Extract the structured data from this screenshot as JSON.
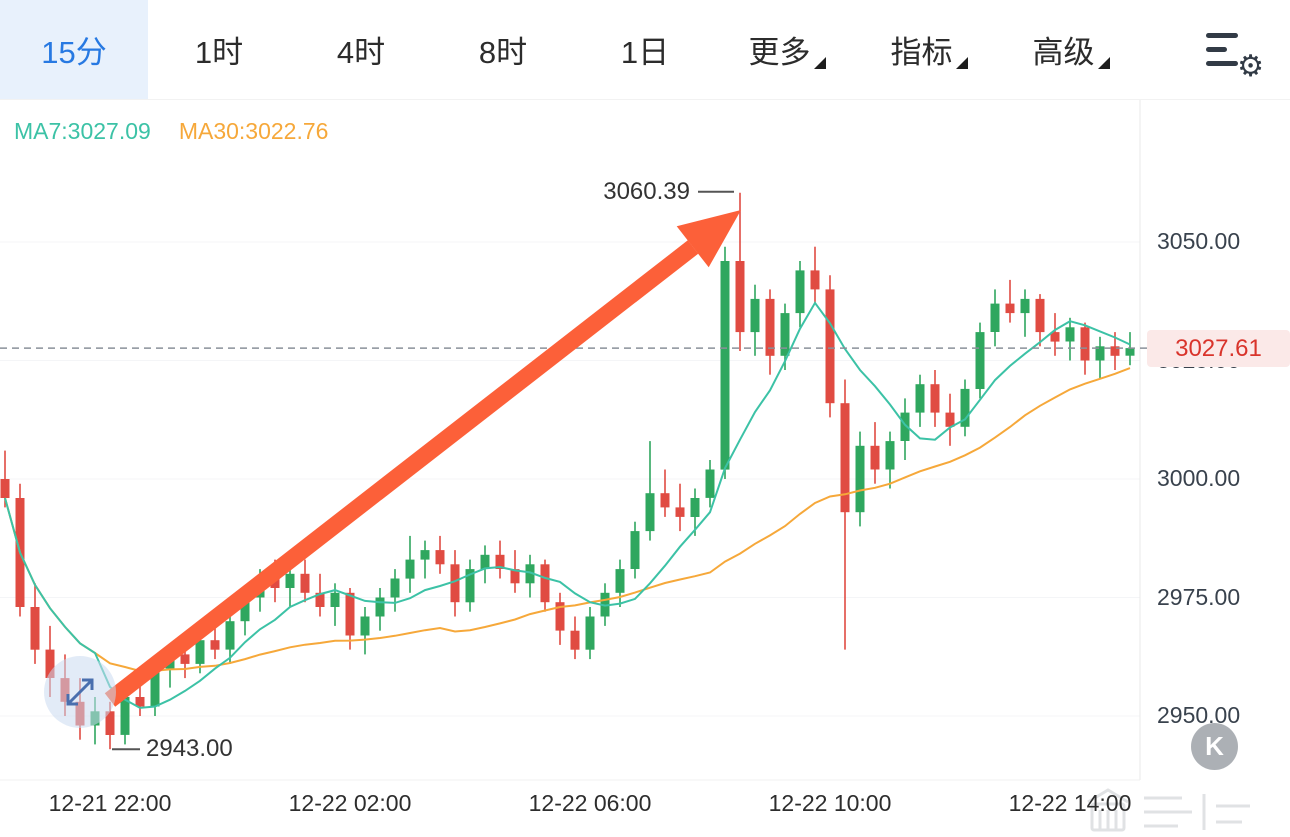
{
  "tabs": {
    "items": [
      {
        "label": "15分",
        "active": true
      },
      {
        "label": "1时"
      },
      {
        "label": "4时"
      },
      {
        "label": "8时"
      },
      {
        "label": "1日"
      },
      {
        "label": "更多",
        "dropdown": true
      },
      {
        "label": "指标",
        "dropdown": true
      },
      {
        "label": "高级",
        "dropdown": true
      }
    ]
  },
  "icons": {
    "gear": "⚙"
  },
  "indicators": {
    "ma7_text": "MA7:3027.09",
    "ma30_text": "MA30:3022.76"
  },
  "price_badge": {
    "value": "3027.61",
    "text_color": "#d9342b",
    "bg_color": "#fbe9e8"
  },
  "annotations": {
    "high_label": "3060.39",
    "low_label": "2943.00"
  },
  "floating": {
    "k_label": "K"
  },
  "chart_data": {
    "type": "candlestick",
    "interval": "15m",
    "start_time": "12-21 20:15",
    "y_ticks": [
      3050,
      3025,
      3000,
      2975,
      2950
    ],
    "x_ticks": [
      {
        "label": "12-21 22:00",
        "index": 7
      },
      {
        "label": "12-22 02:00",
        "index": 23
      },
      {
        "label": "12-22 06:00",
        "index": 39
      },
      {
        "label": "12-22 10:00",
        "index": 55
      },
      {
        "label": "12-22 14:00",
        "index": 71
      }
    ],
    "current_price": 3027.61,
    "high_annotation": {
      "value": 3060.39,
      "index": 49
    },
    "low_annotation": {
      "value": 2943.0,
      "index": 7
    },
    "ma7_last": 3027.09,
    "ma30_last": 3022.76,
    "up_color": "#2fa75f",
    "down_color": "#e04b42",
    "ma7_color": "#3cc2a6",
    "ma30_color": "#f6a83a",
    "arrow_color": "#fc6039",
    "grid": false,
    "legend_position": "top-left",
    "candles": [
      [
        3000,
        3006,
        2994,
        2996
      ],
      [
        2996,
        2999,
        2971,
        2973
      ],
      [
        2973,
        2978,
        2961,
        2964
      ],
      [
        2964,
        2969,
        2954,
        2958
      ],
      [
        2958,
        2963,
        2950,
        2953
      ],
      [
        2953,
        2958,
        2945,
        2948
      ],
      [
        2948,
        2954,
        2944,
        2951
      ],
      [
        2951,
        2953,
        2943,
        2946
      ],
      [
        2946,
        2956,
        2944,
        2954
      ],
      [
        2954,
        2960,
        2950,
        2952
      ],
      [
        2952,
        2962,
        2950,
        2960
      ],
      [
        2960,
        2965,
        2956,
        2963
      ],
      [
        2963,
        2967,
        2958,
        2961
      ],
      [
        2961,
        2968,
        2959,
        2966
      ],
      [
        2966,
        2971,
        2962,
        2964
      ],
      [
        2964,
        2972,
        2961,
        2970
      ],
      [
        2970,
        2977,
        2967,
        2975
      ],
      [
        2975,
        2981,
        2972,
        2979
      ],
      [
        2979,
        2983,
        2974,
        2977
      ],
      [
        2977,
        2982,
        2973,
        2980
      ],
      [
        2980,
        2983,
        2974,
        2976
      ],
      [
        2976,
        2980,
        2971,
        2973
      ],
      [
        2973,
        2978,
        2969,
        2976
      ],
      [
        2976,
        2977,
        2964,
        2967
      ],
      [
        2967,
        2973,
        2963,
        2971
      ],
      [
        2971,
        2977,
        2968,
        2975
      ],
      [
        2975,
        2981,
        2972,
        2979
      ],
      [
        2979,
        2988,
        2976,
        2983
      ],
      [
        2983,
        2987,
        2979,
        2985
      ],
      [
        2985,
        2988,
        2980,
        2982
      ],
      [
        2982,
        2985,
        2971,
        2974
      ],
      [
        2974,
        2983,
        2972,
        2981
      ],
      [
        2981,
        2986,
        2978,
        2984
      ],
      [
        2984,
        2987,
        2979,
        2981
      ],
      [
        2981,
        2985,
        2976,
        2978
      ],
      [
        2978,
        2984,
        2975,
        2982
      ],
      [
        2982,
        2983,
        2972,
        2974
      ],
      [
        2974,
        2976,
        2965,
        2968
      ],
      [
        2968,
        2971,
        2962,
        2964
      ],
      [
        2964,
        2973,
        2962,
        2971
      ],
      [
        2971,
        2978,
        2969,
        2976
      ],
      [
        2976,
        2983,
        2973,
        2981
      ],
      [
        2981,
        2991,
        2979,
        2989
      ],
      [
        2989,
        3008,
        2987,
        2997
      ],
      [
        2997,
        3002,
        2992,
        2994
      ],
      [
        2994,
        2999,
        2989,
        2992
      ],
      [
        2992,
        2998,
        2988,
        2996
      ],
      [
        2996,
        3004,
        2994,
        3002
      ],
      [
        3002,
        3049,
        3000,
        3046
      ],
      [
        3046,
        3060.39,
        3027,
        3031
      ],
      [
        3031,
        3041,
        3026,
        3038
      ],
      [
        3038,
        3040,
        3022,
        3026
      ],
      [
        3026,
        3037,
        3023,
        3035
      ],
      [
        3035,
        3046,
        3032,
        3044
      ],
      [
        3044,
        3049,
        3037,
        3040
      ],
      [
        3040,
        3043,
        3013,
        3016
      ],
      [
        3016,
        3021,
        2964,
        2993
      ],
      [
        2993,
        3010,
        2990,
        3007
      ],
      [
        3007,
        3012,
        2999,
        3002
      ],
      [
        3002,
        3010,
        2998,
        3008
      ],
      [
        3008,
        3017,
        3004,
        3014
      ],
      [
        3014,
        3022,
        3011,
        3020
      ],
      [
        3020,
        3023,
        3011,
        3014
      ],
      [
        3014,
        3018,
        3007,
        3011
      ],
      [
        3011,
        3021,
        3009,
        3019
      ],
      [
        3019,
        3033,
        3017,
        3031
      ],
      [
        3031,
        3040,
        3028,
        3037
      ],
      [
        3037,
        3042,
        3033,
        3035
      ],
      [
        3035,
        3040,
        3030,
        3038
      ],
      [
        3038,
        3039,
        3028,
        3031
      ],
      [
        3031,
        3035,
        3026,
        3029
      ],
      [
        3029,
        3034,
        3025,
        3032
      ],
      [
        3032,
        3033,
        3022,
        3025
      ],
      [
        3025,
        3030,
        3021,
        3028
      ],
      [
        3028,
        3031,
        3023,
        3026
      ],
      [
        3026,
        3031,
        3024,
        3027.61
      ]
    ]
  }
}
